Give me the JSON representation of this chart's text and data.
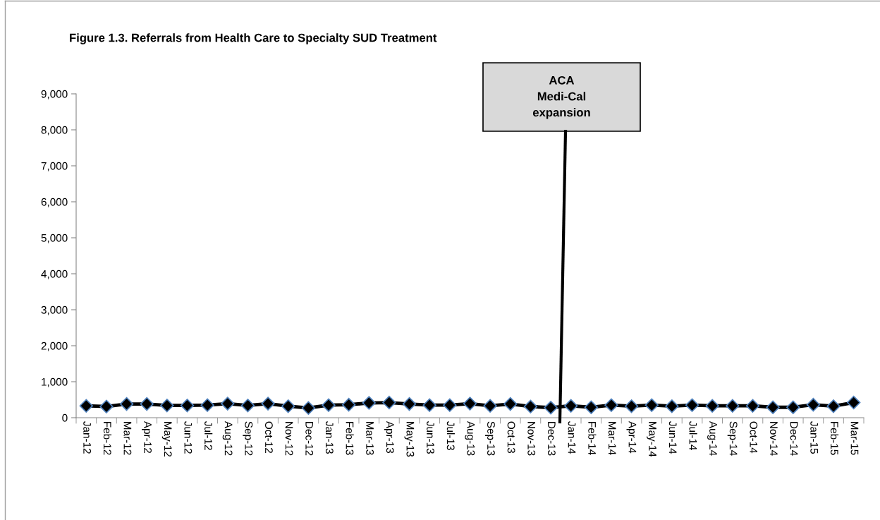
{
  "chart_data": {
    "type": "line",
    "title": "Figure 1.3. Referrals from Health Care to Specialty SUD Treatment",
    "categories": [
      "Jan-12",
      "Feb-12",
      "Mar-12",
      "Apr-12",
      "May-12",
      "Jun-12",
      "Jul-12",
      "Aug-12",
      "Sep-12",
      "Oct-12",
      "Nov-12",
      "Dec-12",
      "Jan-13",
      "Feb-13",
      "Mar-13",
      "Apr-13",
      "May-13",
      "Jun-13",
      "Jul-13",
      "Aug-13",
      "Sep-13",
      "Oct-13",
      "Nov-13",
      "Dec-13",
      "Jan-14",
      "Feb-14",
      "Mar-14",
      "Apr-14",
      "May-14",
      "Jun-14",
      "Jul-14",
      "Aug-14",
      "Sep-14",
      "Oct-14",
      "Nov-14",
      "Dec-14",
      "Jan-15",
      "Feb-15",
      "Mar-15"
    ],
    "series": [
      {
        "color": "#000000",
        "values": [
          330,
          310,
          380,
          380,
          340,
          340,
          350,
          390,
          340,
          390,
          320,
          270,
          350,
          360,
          410,
          420,
          380,
          350,
          350,
          390,
          330,
          380,
          310,
          280,
          330,
          290,
          350,
          320,
          350,
          320,
          350,
          330,
          330,
          330,
          290,
          290,
          360,
          320,
          420
        ]
      }
    ],
    "marker": "diamond",
    "line_style": "solid",
    "ylim": [
      0,
      9000
    ],
    "yticks": [
      {
        "value": 0,
        "label": "0"
      },
      {
        "value": 1000,
        "label": "1,000"
      },
      {
        "value": 2000,
        "label": "2,000"
      },
      {
        "value": 3000,
        "label": "3,000"
      },
      {
        "value": 4000,
        "label": "4,000"
      },
      {
        "value": 5000,
        "label": "5,000"
      },
      {
        "value": 6000,
        "label": "6,000"
      },
      {
        "value": 7000,
        "label": "7,000"
      },
      {
        "value": 8000,
        "label": "8,000"
      },
      {
        "value": 9000,
        "label": "9,000"
      }
    ],
    "grid": false,
    "legend": false,
    "annotations": [
      "ACA\nMedi-Cal\nexpansion"
    ]
  }
}
